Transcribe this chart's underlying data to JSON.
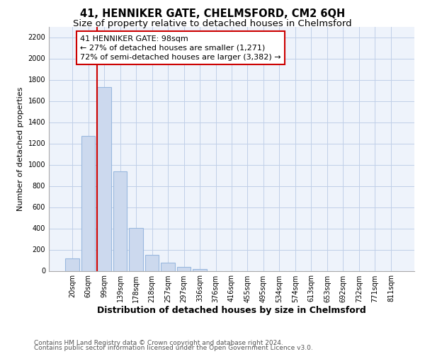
{
  "title": "41, HENNIKER GATE, CHELMSFORD, CM2 6QH",
  "subtitle": "Size of property relative to detached houses in Chelmsford",
  "xlabel": "Distribution of detached houses by size in Chelmsford",
  "ylabel": "Number of detached properties",
  "categories": [
    "20sqm",
    "60sqm",
    "99sqm",
    "139sqm",
    "178sqm",
    "218sqm",
    "257sqm",
    "297sqm",
    "336sqm",
    "376sqm",
    "416sqm",
    "455sqm",
    "495sqm",
    "534sqm",
    "574sqm",
    "613sqm",
    "653sqm",
    "692sqm",
    "732sqm",
    "771sqm",
    "811sqm"
  ],
  "values": [
    120,
    1270,
    1730,
    940,
    405,
    150,
    75,
    35,
    20,
    0,
    0,
    0,
    0,
    0,
    0,
    0,
    0,
    0,
    0,
    0,
    0
  ],
  "bar_color": "#ccd9ee",
  "bar_edge_color": "#99b8de",
  "vline_color": "#cc0000",
  "ann_line1": "41 HENNIKER GATE: 98sqm",
  "ann_line2": "← 27% of detached houses are smaller (1,271)",
  "ann_line3": "72% of semi-detached houses are larger (3,382) →",
  "ylim": [
    0,
    2300
  ],
  "yticks": [
    0,
    200,
    400,
    600,
    800,
    1000,
    1200,
    1400,
    1600,
    1800,
    2000,
    2200
  ],
  "footer_line1": "Contains HM Land Registry data © Crown copyright and database right 2024.",
  "footer_line2": "Contains public sector information licensed under the Open Government Licence v3.0.",
  "bg_color": "#eef3fb",
  "grid_color": "#c0cfe8",
  "title_fontsize": 10.5,
  "subtitle_fontsize": 9.5,
  "xlabel_fontsize": 9,
  "ylabel_fontsize": 8,
  "tick_fontsize": 7,
  "ann_fontsize": 8,
  "footer_fontsize": 6.5
}
